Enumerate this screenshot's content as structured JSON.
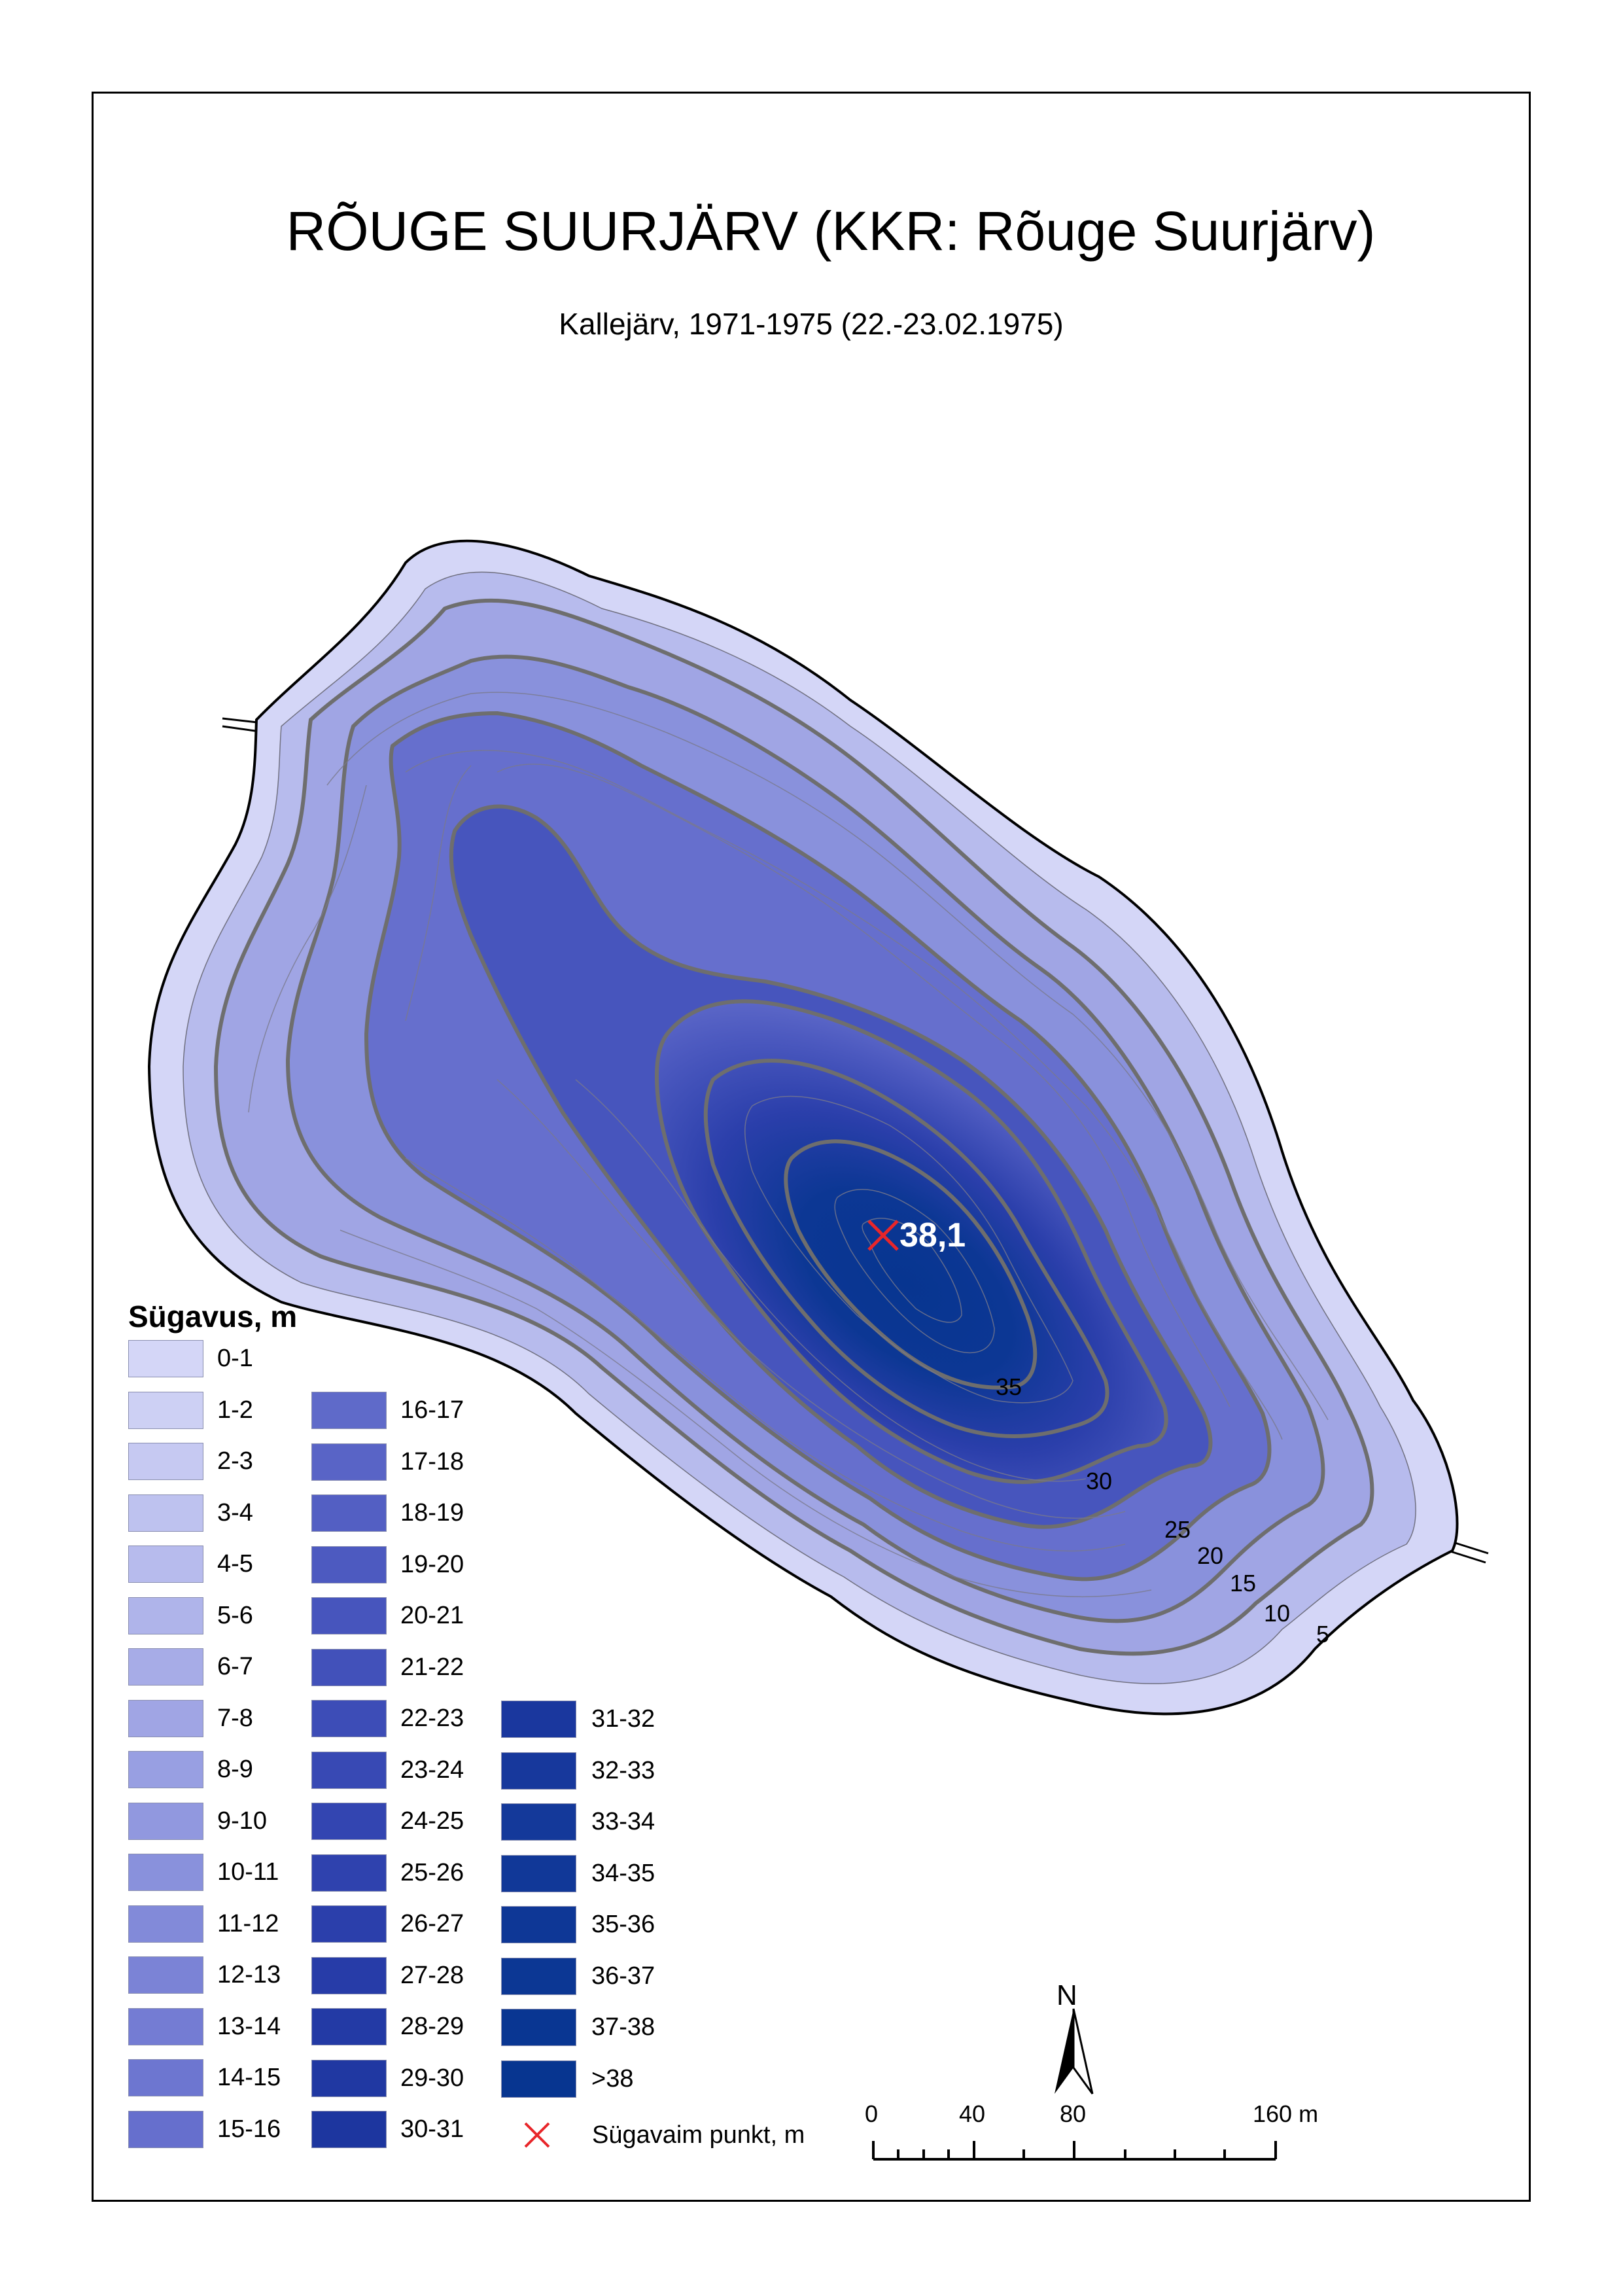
{
  "title": "RÕUGE SUURJÄRV (KKR: Rõuge Suurjärv)",
  "subtitle": "Kallejärv, 1971-1975 (22.-23.02.1975)",
  "deepest_point": {
    "value": "38,1",
    "marker": "red-x-icon"
  },
  "contour_labels": [
    "35",
    "30",
    "25",
    "20",
    "15",
    "10",
    "5"
  ],
  "legend": {
    "title": "Sügavus, m",
    "column1": [
      {
        "label": "0-1",
        "color": "#d4d6f7"
      },
      {
        "label": "1-2",
        "color": "#cdd0f4"
      },
      {
        "label": "2-3",
        "color": "#c6c9f2"
      },
      {
        "label": "3-4",
        "color": "#bec2ef"
      },
      {
        "label": "4-5",
        "color": "#b7bbed"
      },
      {
        "label": "5-6",
        "color": "#afb4ea"
      },
      {
        "label": "6-7",
        "color": "#a7ace7"
      },
      {
        "label": "7-8",
        "color": "#a0a5e4"
      },
      {
        "label": "8-9",
        "color": "#989fe2"
      },
      {
        "label": "9-10",
        "color": "#9198df"
      },
      {
        "label": "10-11",
        "color": "#8991dc"
      },
      {
        "label": "11-12",
        "color": "#828ad9"
      },
      {
        "label": "12-13",
        "color": "#7b83d6"
      },
      {
        "label": "13-14",
        "color": "#747cd3"
      },
      {
        "label": "14-15",
        "color": "#6d76d0"
      },
      {
        "label": "15-16",
        "color": "#666fcd"
      }
    ],
    "column2": [
      {
        "label": "16-17",
        "color": "#5f6ac9"
      },
      {
        "label": "17-18",
        "color": "#5964c6"
      },
      {
        "label": "18-19",
        "color": "#535fc3"
      },
      {
        "label": "19-20",
        "color": "#4d5ac0"
      },
      {
        "label": "20-21",
        "color": "#4755bd"
      },
      {
        "label": "21-22",
        "color": "#4251ba"
      },
      {
        "label": "22-23",
        "color": "#3d4db7"
      },
      {
        "label": "23-24",
        "color": "#3849b4"
      },
      {
        "label": "24-25",
        "color": "#3345b1"
      },
      {
        "label": "25-26",
        "color": "#2f42ae"
      },
      {
        "label": "26-27",
        "color": "#2b3fab"
      },
      {
        "label": "27-28",
        "color": "#273ca8"
      },
      {
        "label": "28-29",
        "color": "#233aa5"
      },
      {
        "label": "29-30",
        "color": "#2038a2"
      },
      {
        "label": "30-31",
        "color": "#1d369f"
      }
    ],
    "column3": [
      {
        "label": "31-32",
        "color": "#1a379e"
      },
      {
        "label": "32-33",
        "color": "#17389c"
      },
      {
        "label": "33-34",
        "color": "#14399a"
      },
      {
        "label": "34-35",
        "color": "#113898"
      },
      {
        "label": "35-36",
        "color": "#0e3796"
      },
      {
        "label": "36-37",
        "color": "#0c3794"
      },
      {
        "label": "37-38",
        "color": "#093692"
      },
      {
        "label": ">38",
        "color": "#073590"
      }
    ],
    "deepest_label": "Sügavaim punkt, m"
  },
  "north_arrow": "N",
  "scale_bar": {
    "labels": [
      "0",
      "40",
      "80",
      "160 m"
    ]
  },
  "colors": {
    "shore": "#000000",
    "contour_thin": "#6a6a78",
    "contour_thick": "#6e6e6e",
    "marker": "#e8262a"
  }
}
